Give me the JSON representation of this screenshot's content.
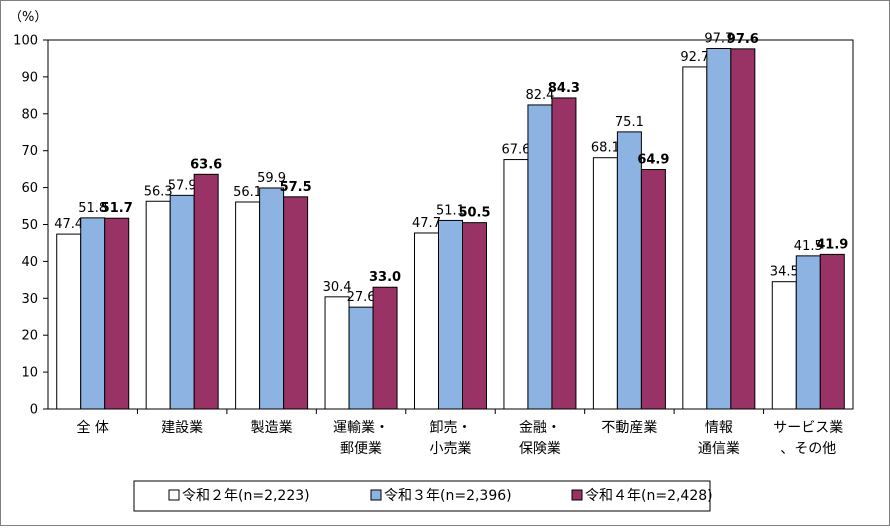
{
  "chart_data": {
    "type": "bar",
    "ylabel": "（%）",
    "ylim": [
      0,
      100
    ],
    "yticks": [
      0,
      10,
      20,
      30,
      40,
      50,
      60,
      70,
      80,
      90,
      100
    ],
    "categories": [
      [
        "全 体"
      ],
      [
        "建設業"
      ],
      [
        "製造業"
      ],
      [
        "運輸業・",
        "郵便業"
      ],
      [
        "卸売・",
        "小売業"
      ],
      [
        "金融・",
        "保険業"
      ],
      [
        "不動産業"
      ],
      [
        "情報",
        "通信業"
      ],
      [
        "サービス業",
        "、その他"
      ]
    ],
    "series": [
      {
        "name": "令和２年(n=2,223)",
        "color": "#ffffff",
        "bold_labels": false,
        "values": [
          47.4,
          56.3,
          56.1,
          30.4,
          47.7,
          67.6,
          68.1,
          92.7,
          34.5
        ]
      },
      {
        "name": "令和３年(n=2,396)",
        "color": "#8db3e2",
        "bold_labels": false,
        "values": [
          51.8,
          57.9,
          59.9,
          27.6,
          51.1,
          82.4,
          75.1,
          97.7,
          41.5
        ]
      },
      {
        "name": "令和４年(n=2,428)",
        "color": "#993366",
        "bold_labels": true,
        "values": [
          51.7,
          63.6,
          57.5,
          33.0,
          50.5,
          84.3,
          64.9,
          97.6,
          41.9
        ]
      }
    ],
    "legend_position": "bottom"
  }
}
